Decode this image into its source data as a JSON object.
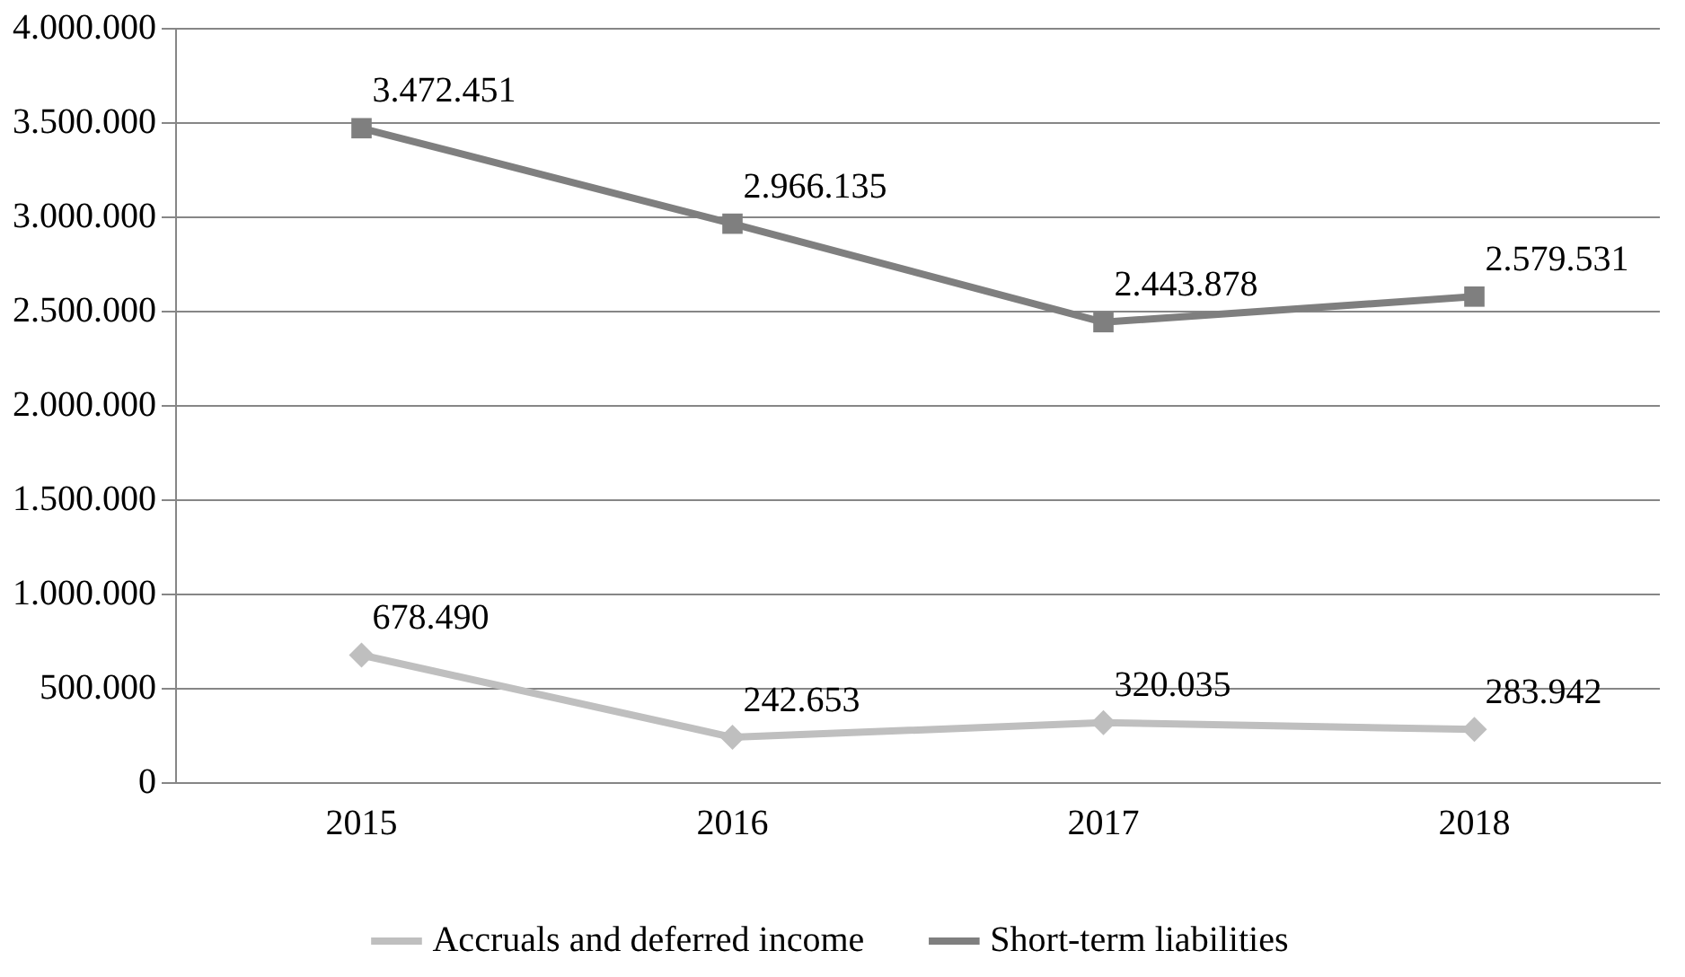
{
  "chart_data": {
    "type": "line",
    "categories": [
      "2015",
      "2016",
      "2017",
      "2018"
    ],
    "series": [
      {
        "name": "Accruals and deferred income",
        "color": "#bfbfbf",
        "marker": "diamond",
        "values": [
          678490,
          242653,
          320035,
          283942
        ],
        "value_labels": [
          "678.490",
          "242.653",
          "320.035",
          "283.942"
        ]
      },
      {
        "name": "Short-term liabilities",
        "color": "#7f7f7f",
        "marker": "square",
        "values": [
          3472451,
          2966135,
          2443878,
          2579531
        ],
        "value_labels": [
          "3.472.451",
          "2.966.135",
          "2.443.878",
          "2.579.531"
        ]
      }
    ],
    "ylim": [
      0,
      4000000
    ],
    "yticks": [
      0,
      {
        "value": 500000,
        "label": "500.000"
      },
      {
        "value": 1000000,
        "label": "1.000.000"
      },
      {
        "value": 1500000,
        "label": "1.500.000"
      },
      {
        "value": 2000000,
        "label": "2.000.000"
      },
      {
        "value": 2500000,
        "label": "2.500.000"
      },
      {
        "value": 3000000,
        "label": "3.000.000"
      },
      {
        "value": 3500000,
        "label": "3.500.000"
      },
      {
        "value": 4000000,
        "label": "4.000.000"
      }
    ],
    "grid": "y",
    "legend": "bottom",
    "line_style": "solid"
  }
}
